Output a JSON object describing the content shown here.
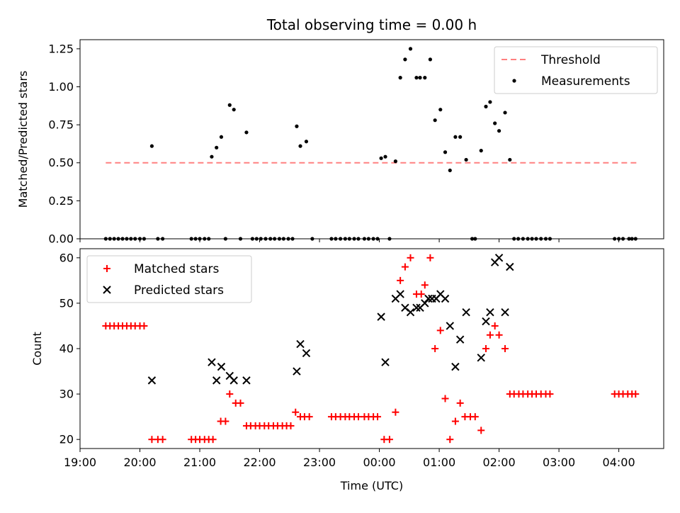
{
  "chart_data": {
    "type": "scatter",
    "title": "Total observing time = 0.00 h",
    "x_unit": "hours since 19:00 UTC",
    "x_ticks": [
      "19:00",
      "20:00",
      "21:00",
      "22:00",
      "23:00",
      "00:00",
      "01:00",
      "02:00",
      "03:00",
      "04:00"
    ],
    "xlabel": "Time (UTC)",
    "xlim": [
      0,
      9.75
    ],
    "panels": [
      {
        "id": "ratio",
        "ylabel": "Matched/Predicted stars",
        "ylim": [
          0,
          1.31
        ],
        "y_ticks": [
          "0.00",
          "0.25",
          "0.50",
          "0.75",
          "1.00",
          "1.25"
        ],
        "y_tick_values": [
          0,
          0.25,
          0.5,
          0.75,
          1.0,
          1.25
        ],
        "legend_position": "top-right",
        "series": [
          {
            "name": "Threshold",
            "kind": "line",
            "style": "dashed",
            "color": "#ff8080",
            "points": [
              [
                0.43,
                0.5
              ],
              [
                9.3,
                0.5
              ]
            ]
          },
          {
            "name": "Measurements",
            "kind": "scatter",
            "marker": "dot",
            "color": "#000000",
            "points": [
              [
                0.43,
                0
              ],
              [
                0.5,
                0
              ],
              [
                0.57,
                0
              ],
              [
                0.64,
                0
              ],
              [
                0.71,
                0
              ],
              [
                0.78,
                0
              ],
              [
                0.85,
                0
              ],
              [
                0.92,
                0
              ],
              [
                1.0,
                0
              ],
              [
                1.07,
                0
              ],
              [
                1.2,
                0.61
              ],
              [
                1.3,
                0
              ],
              [
                1.38,
                0
              ],
              [
                1.86,
                0
              ],
              [
                1.93,
                0
              ],
              [
                2.0,
                0
              ],
              [
                2.08,
                0
              ],
              [
                2.15,
                0
              ],
              [
                2.2,
                0.54
              ],
              [
                2.28,
                0.6
              ],
              [
                2.36,
                0.67
              ],
              [
                2.43,
                0
              ],
              [
                2.5,
                0.88
              ],
              [
                2.57,
                0.85
              ],
              [
                2.68,
                0
              ],
              [
                2.78,
                0.7
              ],
              [
                2.88,
                0
              ],
              [
                2.95,
                0
              ],
              [
                3.02,
                0
              ],
              [
                3.1,
                0
              ],
              [
                3.18,
                0
              ],
              [
                3.25,
                0
              ],
              [
                3.33,
                0
              ],
              [
                3.4,
                0
              ],
              [
                3.48,
                0
              ],
              [
                3.55,
                0
              ],
              [
                3.62,
                0.74
              ],
              [
                3.68,
                0.61
              ],
              [
                3.78,
                0.64
              ],
              [
                3.88,
                0
              ],
              [
                4.2,
                0
              ],
              [
                4.27,
                0
              ],
              [
                4.35,
                0
              ],
              [
                4.43,
                0
              ],
              [
                4.5,
                0
              ],
              [
                4.58,
                0
              ],
              [
                4.65,
                0
              ],
              [
                4.75,
                0
              ],
              [
                4.82,
                0
              ],
              [
                4.9,
                0
              ],
              [
                4.97,
                0
              ],
              [
                5.03,
                0.53
              ],
              [
                5.1,
                0.54
              ],
              [
                5.17,
                0
              ],
              [
                5.27,
                0.51
              ],
              [
                5.35,
                1.06
              ],
              [
                5.43,
                1.18
              ],
              [
                5.52,
                1.25
              ],
              [
                5.62,
                1.06
              ],
              [
                5.68,
                1.06
              ],
              [
                5.76,
                1.06
              ],
              [
                5.85,
                1.18
              ],
              [
                5.93,
                0.78
              ],
              [
                6.02,
                0.85
              ],
              [
                6.1,
                0.57
              ],
              [
                6.18,
                0.45
              ],
              [
                6.27,
                0.67
              ],
              [
                6.35,
                0.67
              ],
              [
                6.45,
                0.52
              ],
              [
                6.55,
                0
              ],
              [
                6.6,
                0
              ],
              [
                6.7,
                0.58
              ],
              [
                6.78,
                0.87
              ],
              [
                6.85,
                0.9
              ],
              [
                6.93,
                0.76
              ],
              [
                7.0,
                0.71
              ],
              [
                7.1,
                0.83
              ],
              [
                7.18,
                0.52
              ],
              [
                7.25,
                0
              ],
              [
                7.32,
                0
              ],
              [
                7.4,
                0
              ],
              [
                7.48,
                0
              ],
              [
                7.55,
                0
              ],
              [
                7.62,
                0
              ],
              [
                7.7,
                0
              ],
              [
                7.78,
                0
              ],
              [
                7.85,
                0
              ],
              [
                8.93,
                0
              ],
              [
                9.0,
                0
              ],
              [
                9.07,
                0
              ],
              [
                9.17,
                0
              ],
              [
                9.22,
                0
              ],
              [
                9.28,
                0
              ]
            ]
          }
        ]
      },
      {
        "id": "count",
        "ylabel": "Count",
        "ylim": [
          18,
          62
        ],
        "y_ticks": [
          "20",
          "30",
          "40",
          "50",
          "60"
        ],
        "y_tick_values": [
          20,
          30,
          40,
          50,
          60
        ],
        "legend_position": "top-left",
        "series": [
          {
            "name": "Matched stars",
            "kind": "scatter",
            "marker": "plus",
            "color": "#ff0000",
            "points": [
              [
                0.43,
                45
              ],
              [
                0.5,
                45
              ],
              [
                0.57,
                45
              ],
              [
                0.64,
                45
              ],
              [
                0.71,
                45
              ],
              [
                0.78,
                45
              ],
              [
                0.85,
                45
              ],
              [
                0.92,
                45
              ],
              [
                1.0,
                45
              ],
              [
                1.07,
                45
              ],
              [
                1.2,
                20
              ],
              [
                1.3,
                20
              ],
              [
                1.38,
                20
              ],
              [
                1.86,
                20
              ],
              [
                1.93,
                20
              ],
              [
                2.0,
                20
              ],
              [
                2.08,
                20
              ],
              [
                2.15,
                20
              ],
              [
                2.22,
                20
              ],
              [
                2.35,
                24
              ],
              [
                2.43,
                24
              ],
              [
                2.5,
                30
              ],
              [
                2.6,
                28
              ],
              [
                2.68,
                28
              ],
              [
                2.78,
                23
              ],
              [
                2.85,
                23
              ],
              [
                2.93,
                23
              ],
              [
                3.0,
                23
              ],
              [
                3.08,
                23
              ],
              [
                3.15,
                23
              ],
              [
                3.23,
                23
              ],
              [
                3.3,
                23
              ],
              [
                3.38,
                23
              ],
              [
                3.45,
                23
              ],
              [
                3.52,
                23
              ],
              [
                3.6,
                26
              ],
              [
                3.68,
                25
              ],
              [
                3.75,
                25
              ],
              [
                3.83,
                25
              ],
              [
                4.2,
                25
              ],
              [
                4.27,
                25
              ],
              [
                4.35,
                25
              ],
              [
                4.43,
                25
              ],
              [
                4.5,
                25
              ],
              [
                4.58,
                25
              ],
              [
                4.65,
                25
              ],
              [
                4.75,
                25
              ],
              [
                4.82,
                25
              ],
              [
                4.9,
                25
              ],
              [
                4.97,
                25
              ],
              [
                5.08,
                20
              ],
              [
                5.17,
                20
              ],
              [
                5.27,
                26
              ],
              [
                5.35,
                55
              ],
              [
                5.43,
                58
              ],
              [
                5.52,
                60
              ],
              [
                5.62,
                52
              ],
              [
                5.7,
                52
              ],
              [
                5.76,
                54
              ],
              [
                5.85,
                60
              ],
              [
                5.93,
                40
              ],
              [
                6.02,
                44
              ],
              [
                6.1,
                29
              ],
              [
                6.18,
                20
              ],
              [
                6.27,
                24
              ],
              [
                6.35,
                28
              ],
              [
                6.43,
                25
              ],
              [
                6.52,
                25
              ],
              [
                6.6,
                25
              ],
              [
                6.7,
                22
              ],
              [
                6.78,
                40
              ],
              [
                6.85,
                43
              ],
              [
                6.93,
                45
              ],
              [
                7.0,
                43
              ],
              [
                7.1,
                40
              ],
              [
                7.18,
                30
              ],
              [
                7.25,
                30
              ],
              [
                7.33,
                30
              ],
              [
                7.4,
                30
              ],
              [
                7.48,
                30
              ],
              [
                7.55,
                30
              ],
              [
                7.62,
                30
              ],
              [
                7.7,
                30
              ],
              [
                7.78,
                30
              ],
              [
                7.85,
                30
              ],
              [
                8.93,
                30
              ],
              [
                9.0,
                30
              ],
              [
                9.07,
                30
              ],
              [
                9.15,
                30
              ],
              [
                9.22,
                30
              ],
              [
                9.28,
                30
              ]
            ]
          },
          {
            "name": "Predicted stars",
            "kind": "scatter",
            "marker": "x",
            "color": "#000000",
            "points": [
              [
                1.2,
                33
              ],
              [
                2.2,
                37
              ],
              [
                2.28,
                33
              ],
              [
                2.36,
                36
              ],
              [
                2.5,
                34
              ],
              [
                2.57,
                33
              ],
              [
                2.78,
                33
              ],
              [
                3.62,
                35
              ],
              [
                3.68,
                41
              ],
              [
                3.78,
                39
              ],
              [
                5.03,
                47
              ],
              [
                5.1,
                37
              ],
              [
                5.27,
                51
              ],
              [
                5.35,
                52
              ],
              [
                5.43,
                49
              ],
              [
                5.52,
                48
              ],
              [
                5.62,
                49
              ],
              [
                5.68,
                49
              ],
              [
                5.76,
                50
              ],
              [
                5.82,
                51
              ],
              [
                5.88,
                51
              ],
              [
                5.95,
                51
              ],
              [
                6.02,
                52
              ],
              [
                6.1,
                51
              ],
              [
                6.18,
                45
              ],
              [
                6.27,
                36
              ],
              [
                6.35,
                42
              ],
              [
                6.45,
                48
              ],
              [
                6.7,
                38
              ],
              [
                6.78,
                46
              ],
              [
                6.85,
                48
              ],
              [
                6.93,
                59
              ],
              [
                7.0,
                60
              ],
              [
                7.1,
                48
              ],
              [
                7.18,
                58
              ]
            ]
          }
        ]
      }
    ]
  }
}
